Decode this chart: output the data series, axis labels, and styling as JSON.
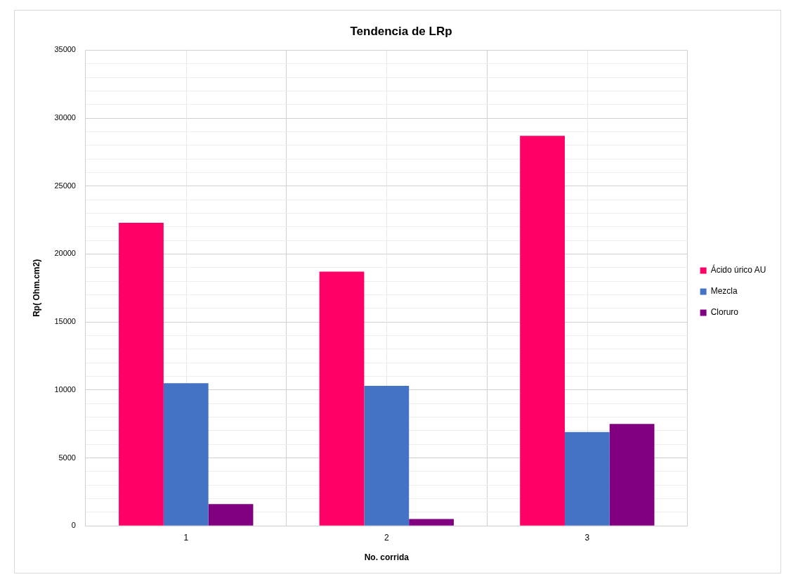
{
  "chart_data": {
    "type": "bar",
    "title": "Tendencia de LRp",
    "xlabel": "No. corrida",
    "ylabel": "Rp( Ohm.cm2)",
    "categories": [
      "1",
      "2",
      "3"
    ],
    "series": [
      {
        "name": "Ácido úrico AU",
        "color": "#ff0066",
        "values": [
          22300,
          18700,
          28700
        ]
      },
      {
        "name": "Mezcla",
        "color": "#4472c4",
        "values": [
          10500,
          10300,
          6900
        ]
      },
      {
        "name": "Cloruro",
        "color": "#800080",
        "values": [
          1600,
          500,
          7500
        ]
      }
    ],
    "ylim": [
      0,
      35000
    ],
    "yticks": [
      0,
      {
        "value": 1000,
        "label": null
      },
      {
        "value": 2000,
        "label": null
      },
      {
        "value": 3000,
        "label": null
      },
      {
        "value": 4000,
        "label": null
      },
      5000,
      {
        "value": 6000,
        "label": null
      },
      {
        "value": 7000,
        "label": null
      },
      {
        "value": 8000,
        "label": null
      },
      {
        "value": 9000,
        "label": null
      },
      10000,
      {
        "value": 11000,
        "label": null
      },
      {
        "value": 12000,
        "label": null
      },
      {
        "value": 13000,
        "label": null
      },
      {
        "value": 14000,
        "label": null
      },
      15000,
      {
        "value": 16000,
        "label": null
      },
      {
        "value": 17000,
        "label": null
      },
      {
        "value": 18000,
        "label": null
      },
      {
        "value": 19000,
        "label": null
      },
      20000,
      {
        "value": 21000,
        "label": null
      },
      {
        "value": 22000,
        "label": null
      },
      {
        "value": 23000,
        "label": null
      },
      {
        "value": 24000,
        "label": null
      },
      25000,
      {
        "value": 26000,
        "label": null
      },
      {
        "value": 27000,
        "label": null
      },
      {
        "value": 28000,
        "label": null
      },
      {
        "value": 29000,
        "label": null
      },
      30000,
      {
        "value": 31000,
        "label": null
      },
      {
        "value": 32000,
        "label": null
      },
      {
        "value": 33000,
        "label": null
      },
      {
        "value": 34000,
        "label": null
      },
      35000
    ],
    "grid": true,
    "legend": "right"
  }
}
